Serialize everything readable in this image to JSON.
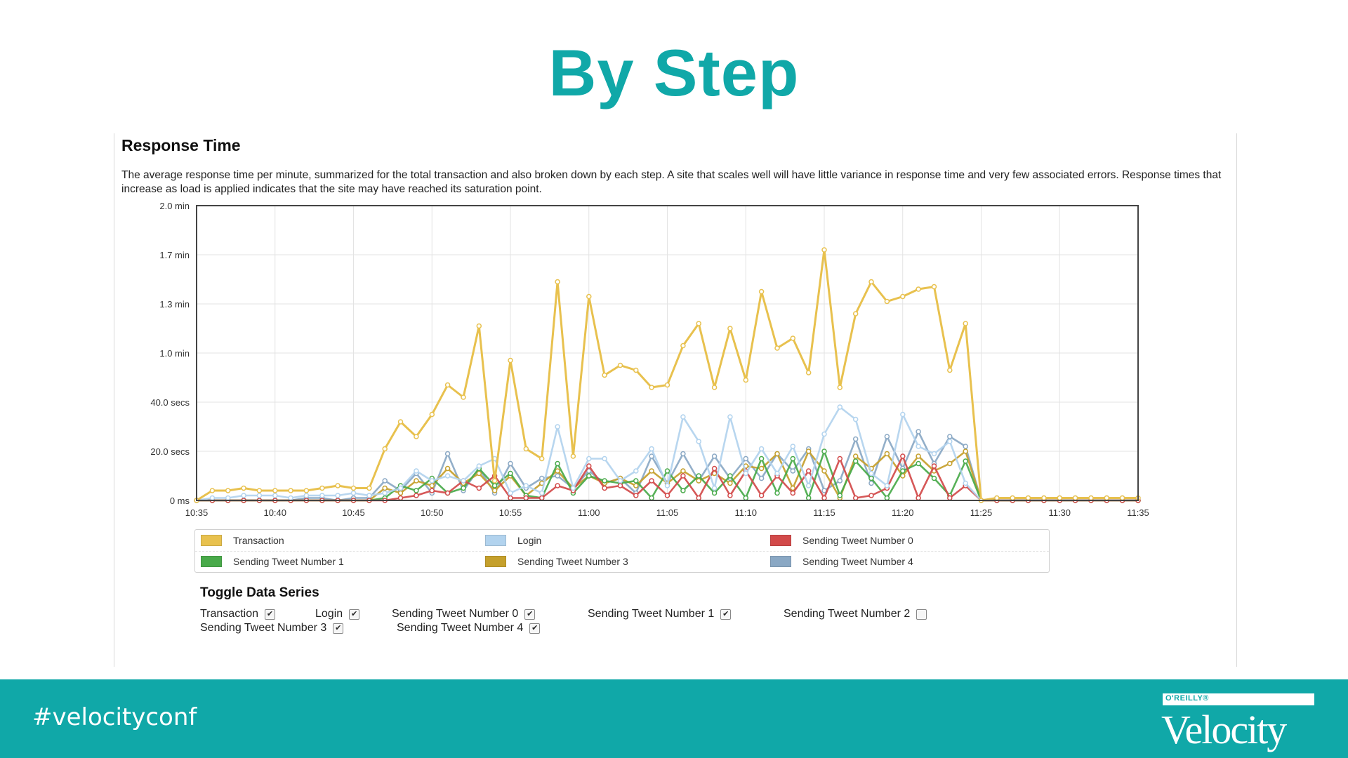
{
  "slide": {
    "title": "By Step",
    "hashtag": "#velocityconf",
    "brand_small": "O'REILLY®",
    "brand_name": "Velocity",
    "colors": {
      "accent": "#10a8a8",
      "footer_bg": "#10a8a8"
    }
  },
  "section": {
    "title": "Response Time",
    "description": "The average response time per minute, summarized for the total transaction and also broken down by each step. A site that scales well will have little variance in response time and very few associated errors. Response times that increase as load is applied indicates that the site may have reached its saturation point."
  },
  "toggle": {
    "title": "Toggle Data Series",
    "items": [
      {
        "label": "Transaction",
        "checked": true
      },
      {
        "label": "Login",
        "checked": true
      },
      {
        "label": "Sending Tweet Number 0",
        "checked": true
      },
      {
        "label": "Sending Tweet Number 1",
        "checked": true
      },
      {
        "label": "Sending Tweet Number 2",
        "checked": false
      },
      {
        "label": "Sending Tweet Number 3",
        "checked": true
      },
      {
        "label": "Sending Tweet Number 4",
        "checked": true
      }
    ]
  },
  "chart_data": {
    "type": "line",
    "title": "",
    "xlabel": "",
    "ylabel": "",
    "x": [
      "10:35",
      "10:36",
      "10:37",
      "10:38",
      "10:39",
      "10:40",
      "10:41",
      "10:42",
      "10:43",
      "10:44",
      "10:45",
      "10:46",
      "10:47",
      "10:48",
      "10:49",
      "10:50",
      "10:51",
      "10:52",
      "10:53",
      "10:54",
      "10:55",
      "10:56",
      "10:57",
      "10:58",
      "10:59",
      "11:00",
      "11:01",
      "11:02",
      "11:03",
      "11:04",
      "11:05",
      "11:06",
      "11:07",
      "11:08",
      "11:09",
      "11:10",
      "11:11",
      "11:12",
      "11:13",
      "11:14",
      "11:15",
      "11:16",
      "11:17",
      "11:18",
      "11:19",
      "11:20",
      "11:21",
      "11:22",
      "11:23",
      "11:24",
      "11:25",
      "11:26",
      "11:27",
      "11:28",
      "11:29",
      "11:30",
      "11:31",
      "11:32",
      "11:33",
      "11:34",
      "11:35"
    ],
    "x_tick_labels": [
      "10:35",
      "10:40",
      "10:45",
      "10:50",
      "10:55",
      "11:00",
      "11:05",
      "11:10",
      "11:15",
      "11:20",
      "11:25",
      "11:30",
      "11:35"
    ],
    "y_unit": "seconds",
    "ylim": [
      0,
      120
    ],
    "y_ticks": [
      0,
      20,
      40,
      60,
      80,
      100,
      120
    ],
    "y_tick_labels": [
      "0 ms",
      "20.0 secs",
      "40.0 secs",
      "1.0 min",
      "1.3 min",
      "1.7 min",
      "2.0 min"
    ],
    "grid": true,
    "legend_position": "bottom",
    "series": [
      {
        "name": "Transaction",
        "color": "#e8c14e",
        "values": [
          0,
          4,
          4,
          5,
          4,
          4,
          4,
          4,
          5,
          6,
          5,
          5,
          21,
          32,
          26,
          35,
          47,
          42,
          71,
          8,
          57,
          21,
          17,
          89,
          18,
          83,
          51,
          55,
          53,
          46,
          47,
          63,
          72,
          46,
          70,
          49,
          85,
          62,
          66,
          52,
          102,
          46,
          76,
          89,
          81,
          83,
          86,
          87,
          53,
          72,
          0,
          1,
          1,
          1,
          1,
          1,
          1,
          1,
          1,
          1,
          1
        ]
      },
      {
        "name": "Login",
        "color": "#b2d3ee",
        "values": [
          0,
          1,
          1,
          2,
          2,
          2,
          1,
          2,
          2,
          2,
          3,
          2,
          3,
          5,
          12,
          8,
          10,
          8,
          14,
          17,
          3,
          6,
          3,
          30,
          5,
          17,
          17,
          8,
          12,
          21,
          6,
          34,
          24,
          5,
          34,
          11,
          21,
          11,
          22,
          6,
          27,
          38,
          33,
          11,
          6,
          35,
          22,
          19,
          24,
          7,
          0,
          1,
          1,
          1,
          1,
          1,
          1,
          1,
          1,
          1,
          1
        ]
      },
      {
        "name": "Sending Tweet Number 0",
        "color": "#d24a4a",
        "values": [
          0,
          0,
          0,
          0,
          0,
          0,
          0,
          0,
          0,
          0,
          0,
          0,
          0,
          1,
          2,
          4,
          3,
          8,
          5,
          10,
          1,
          1,
          1,
          6,
          4,
          14,
          5,
          6,
          2,
          8,
          2,
          10,
          1,
          13,
          2,
          12,
          2,
          10,
          3,
          12,
          1,
          17,
          1,
          2,
          5,
          18,
          1,
          14,
          1,
          6,
          0,
          0,
          0,
          0,
          0,
          0,
          0,
          0,
          0,
          0,
          0
        ]
      },
      {
        "name": "Sending Tweet Number 1",
        "color": "#49aa4a",
        "values": [
          0,
          0,
          0,
          0,
          0,
          0,
          0,
          0,
          0,
          0,
          0,
          0,
          1,
          6,
          4,
          9,
          3,
          5,
          13,
          6,
          11,
          2,
          1,
          15,
          3,
          10,
          8,
          7,
          8,
          1,
          12,
          4,
          10,
          3,
          10,
          1,
          17,
          3,
          17,
          1,
          20,
          2,
          16,
          9,
          1,
          12,
          15,
          9,
          2,
          16,
          0,
          0,
          0,
          0,
          0,
          0,
          0,
          0,
          0,
          0,
          0
        ]
      },
      {
        "name": "Sending Tweet Number 3",
        "color": "#c5a02c",
        "values": [
          0,
          0,
          0,
          0,
          0,
          0,
          0,
          0,
          0,
          0,
          0,
          0,
          5,
          3,
          8,
          6,
          13,
          7,
          11,
          4,
          10,
          2,
          7,
          12,
          5,
          10,
          7,
          9,
          6,
          12,
          7,
          12,
          8,
          11,
          7,
          14,
          13,
          19,
          5,
          20,
          12,
          1,
          18,
          13,
          19,
          10,
          18,
          12,
          15,
          20,
          0,
          0,
          0,
          0,
          0,
          0,
          0,
          0,
          0,
          0,
          0
        ]
      },
      {
        "name": "Sending Tweet Number 4",
        "color": "#8aa8c4",
        "values": [
          0,
          0,
          0,
          0,
          0,
          0,
          0,
          1,
          1,
          0,
          1,
          1,
          8,
          4,
          11,
          3,
          19,
          4,
          13,
          3,
          15,
          5,
          9,
          10,
          5,
          12,
          7,
          9,
          3,
          18,
          7,
          19,
          8,
          18,
          9,
          17,
          9,
          19,
          12,
          21,
          4,
          8,
          25,
          7,
          26,
          13,
          28,
          15,
          26,
          22,
          0,
          0,
          0,
          0,
          0,
          0,
          0,
          0,
          0,
          0,
          0
        ]
      }
    ],
    "legend_rows": [
      [
        "Transaction",
        "Login",
        "Sending Tweet Number 0"
      ],
      [
        "Sending Tweet Number 1",
        "Sending Tweet Number 3",
        "Sending Tweet Number 4"
      ]
    ]
  }
}
